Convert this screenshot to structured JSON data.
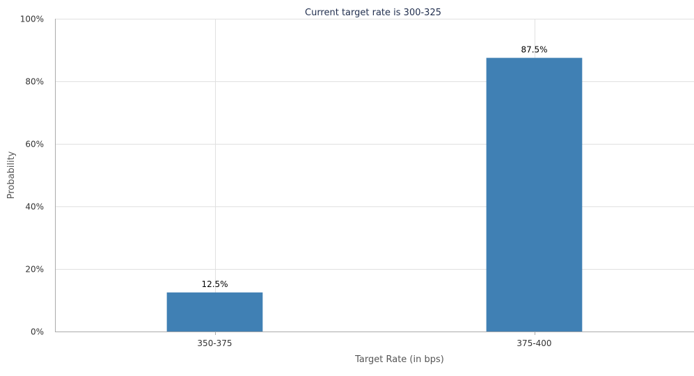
{
  "chart_data": {
    "type": "bar",
    "title": "Current target rate is 300-325",
    "xlabel": "Target Rate (in bps)",
    "ylabel": "Probability",
    "categories": [
      "350-375",
      "375-400"
    ],
    "values": [
      12.5,
      87.5
    ],
    "data_labels": [
      "12.5%",
      "87.5%"
    ],
    "ylim": [
      0,
      100
    ],
    "yticks": [
      0,
      20,
      40,
      60,
      80,
      100
    ],
    "ytick_labels": [
      "0%",
      "20%",
      "40%",
      "60%",
      "80%",
      "100%"
    ],
    "grid": true,
    "legend": "none",
    "colors": {
      "bar": "#4080b4",
      "grid": "#e0e0e0",
      "axis": "#aaaaaa",
      "title": "#1f2d4d"
    }
  }
}
